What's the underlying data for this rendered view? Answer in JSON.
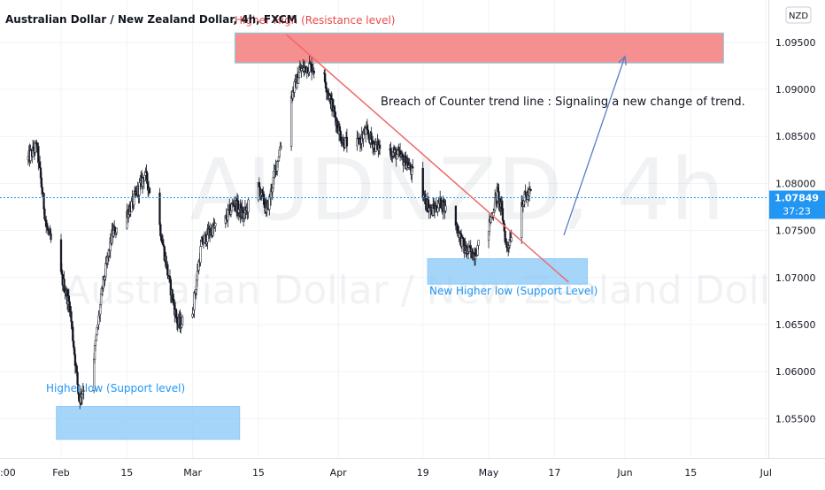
{
  "symbol_title": "Australian Dollar / New Zealand Dollar, 4h, FXCM",
  "currency_badge": "NZD",
  "last_price_label": "1.07849",
  "countdown_label": "37:23",
  "watermark": {
    "symbol": "AUDNZD, 4h",
    "name": "Australian Dollar / New Zealand Dollar"
  },
  "colors": {
    "candle": "#131722",
    "resistance_zone": "#f47c7c",
    "support_zone": "#8ecbf7",
    "support_text": "#2196f3",
    "resistance_text": "#e84b4b",
    "trendline": "#f06868",
    "arrow": "#5b7bc9",
    "price_line": "#2196f3"
  },
  "annotations": {
    "resistance_label": "Higher High (Resistance level)",
    "support_label_1": "Higher low (Support level)",
    "support_label_2": "New Higher low (Support Level)",
    "breach_note": "Breach of Counter trend line : Signaling a new change of trend."
  },
  "chart_data": {
    "type": "candlestick",
    "title": "Australian Dollar / New Zealand Dollar, 4h, FXCM",
    "x_ticks": [
      ":00",
      "Feb",
      "15",
      "Mar",
      "15",
      "Apr",
      "19",
      "May",
      "17",
      "Jun",
      "15",
      "Jul"
    ],
    "y_ticks": [
      "1.05500",
      "1.06000",
      "1.06500",
      "1.07000",
      "1.07500",
      "1.08000",
      "1.08500",
      "1.09000",
      "1.09500"
    ],
    "y_tick_values": [
      1.055,
      1.06,
      1.065,
      1.07,
      1.075,
      1.08,
      1.085,
      1.09,
      1.095
    ],
    "ylim": [
      1.0508,
      1.0995
    ],
    "last_price": 1.07849,
    "price_path_keypoints": [
      {
        "date": "2021-01-25",
        "price": 1.0825
      },
      {
        "date": "2021-01-27",
        "price": 1.084
      },
      {
        "date": "2021-01-29",
        "price": 1.0755
      },
      {
        "date": "2021-02-01",
        "price": 1.0705
      },
      {
        "date": "2021-02-03",
        "price": 1.067
      },
      {
        "date": "2021-02-05",
        "price": 1.057
      },
      {
        "date": "2021-02-08",
        "price": 1.061
      },
      {
        "date": "2021-02-10",
        "price": 1.069
      },
      {
        "date": "2021-02-12",
        "price": 1.0745
      },
      {
        "date": "2021-02-16",
        "price": 1.0775
      },
      {
        "date": "2021-02-19",
        "price": 1.081
      },
      {
        "date": "2021-02-22",
        "price": 1.076
      },
      {
        "date": "2021-02-24",
        "price": 1.07
      },
      {
        "date": "2021-02-26",
        "price": 1.065
      },
      {
        "date": "2021-03-01",
        "price": 1.066
      },
      {
        "date": "2021-03-03",
        "price": 1.0735
      },
      {
        "date": "2021-03-05",
        "price": 1.075
      },
      {
        "date": "2021-03-08",
        "price": 1.076
      },
      {
        "date": "2021-03-10",
        "price": 1.078
      },
      {
        "date": "2021-03-12",
        "price": 1.0765
      },
      {
        "date": "2021-03-15",
        "price": 1.08
      },
      {
        "date": "2021-03-17",
        "price": 1.077
      },
      {
        "date": "2021-03-19",
        "price": 1.082
      },
      {
        "date": "2021-03-22",
        "price": 1.089
      },
      {
        "date": "2021-03-24",
        "price": 1.092
      },
      {
        "date": "2021-03-26",
        "price": 1.0925
      },
      {
        "date": "2021-03-29",
        "price": 1.0915
      },
      {
        "date": "2021-03-31",
        "price": 1.088
      },
      {
        "date": "2021-04-02",
        "price": 1.0845
      },
      {
        "date": "2021-04-05",
        "price": 1.084
      },
      {
        "date": "2021-04-07",
        "price": 1.0855
      },
      {
        "date": "2021-04-09",
        "price": 1.084
      },
      {
        "date": "2021-04-12",
        "price": 1.0835
      },
      {
        "date": "2021-04-14",
        "price": 1.083
      },
      {
        "date": "2021-04-16",
        "price": 1.082
      },
      {
        "date": "2021-04-19",
        "price": 1.079
      },
      {
        "date": "2021-04-21",
        "price": 1.077
      },
      {
        "date": "2021-04-23",
        "price": 1.078
      },
      {
        "date": "2021-04-26",
        "price": 1.076
      },
      {
        "date": "2021-04-28",
        "price": 1.073
      },
      {
        "date": "2021-04-30",
        "price": 1.0725
      },
      {
        "date": "2021-05-03",
        "price": 1.075
      },
      {
        "date": "2021-05-05",
        "price": 1.079
      },
      {
        "date": "2021-05-06",
        "price": 1.077
      },
      {
        "date": "2021-05-07",
        "price": 1.073
      },
      {
        "date": "2021-05-10",
        "price": 1.078
      },
      {
        "date": "2021-05-12",
        "price": 1.079
      }
    ],
    "zones": [
      {
        "label": "Higher High (Resistance level)",
        "from": "2021-03-10",
        "to": "2021-06-22",
        "low": 1.0928,
        "high": 1.096
      },
      {
        "label": "Higher low (Support level)",
        "from": "2021-01-31",
        "to": "2021-03-11",
        "low": 1.0528,
        "high": 1.0563
      },
      {
        "label": "New Higher low (Support Level)",
        "from": "2021-04-20",
        "to": "2021-05-24",
        "low": 1.0693,
        "high": 1.072
      }
    ],
    "trendline": {
      "from": {
        "date": "2021-03-21",
        "price": 1.0958
      },
      "to": {
        "date": "2021-05-20",
        "price": 1.0695
      }
    },
    "arrow": {
      "from": {
        "date": "2021-05-19",
        "price": 1.0745
      },
      "to": {
        "date": "2021-06-01",
        "price": 1.0935
      }
    }
  }
}
